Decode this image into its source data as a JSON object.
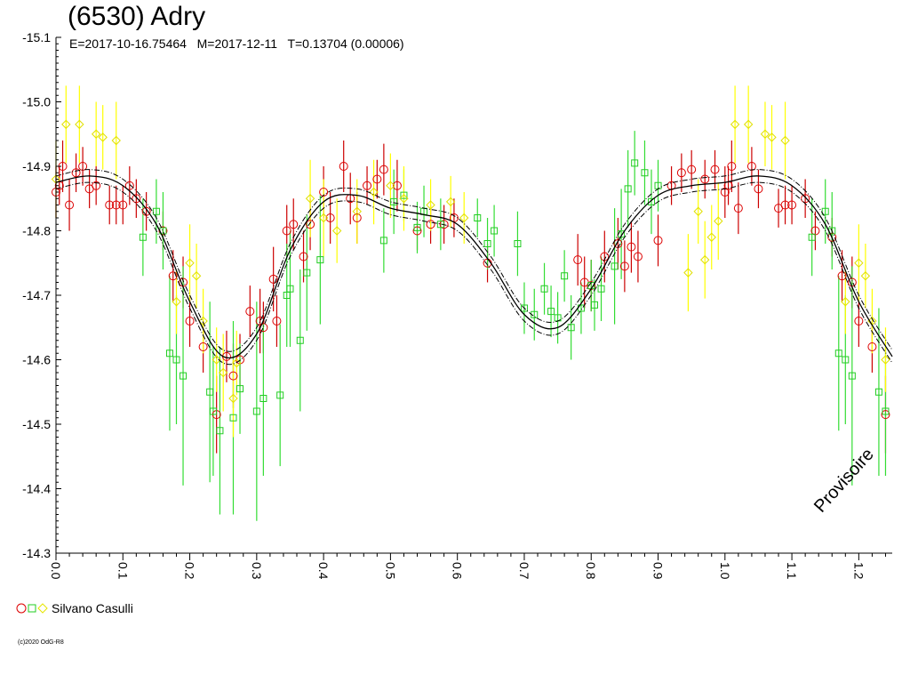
{
  "title": "(6530) Adry",
  "subtitle": "E=2017-10-16.75464   M=2017-12-11   T=0.13704 (0.00006)",
  "watermark": "Provisoire",
  "copyright": "(c)2020 OdG-R8",
  "legend": {
    "label": "Silvano Casulli",
    "colors": [
      "#dd0000",
      "#00c000",
      "#ffff00"
    ]
  },
  "colors": {
    "red": "#dd0000",
    "green": "#22cc22",
    "yellow": "#ffff00",
    "curve": "#000000"
  },
  "chart_data": {
    "type": "scatter",
    "title": "(6530) Adry",
    "xlim": [
      0,
      1.25
    ],
    "ylim": [
      -14.3,
      -15.1
    ],
    "y_inverted": true,
    "xticks": [
      "0.0",
      "0.1",
      "0.2",
      "0.3",
      "0.4",
      "0.5",
      "0.6",
      "0.7",
      "0.8",
      "0.9",
      "1.0",
      "1.1",
      "1.2"
    ],
    "yticks": [
      "-15.1",
      "-15.0",
      "-14.9",
      "-14.8",
      "-14.7",
      "-14.6",
      "-14.5",
      "-14.4",
      "-14.3"
    ],
    "grid": false,
    "legend_position": "bottom-left",
    "fit_curve": {
      "x": [
        0.0,
        0.05,
        0.1,
        0.15,
        0.2,
        0.25,
        0.3,
        0.35,
        0.4,
        0.45,
        0.5,
        0.55,
        0.6,
        0.65,
        0.7,
        0.75,
        0.8,
        0.85,
        0.9,
        0.95,
        1.0,
        1.05,
        1.1,
        1.15,
        1.2,
        1.25
      ],
      "y": [
        -14.875,
        -14.885,
        -14.87,
        -14.81,
        -14.69,
        -14.605,
        -14.64,
        -14.77,
        -14.845,
        -14.855,
        -14.835,
        -14.825,
        -14.81,
        -14.75,
        -14.67,
        -14.65,
        -14.71,
        -14.8,
        -14.855,
        -14.87,
        -14.875,
        -14.885,
        -14.87,
        -14.81,
        -14.69,
        -14.605
      ],
      "band": 0.01
    },
    "series": [
      {
        "marker": "circle",
        "color": "#dd0000",
        "points": [
          [
            0.0,
            -14.86,
            0.04
          ],
          [
            0.005,
            -14.87,
            0.03
          ],
          [
            0.01,
            -14.9,
            0.04
          ],
          [
            0.02,
            -14.84,
            0.04
          ],
          [
            0.03,
            -14.89,
            0.03
          ],
          [
            0.04,
            -14.9,
            0.03
          ],
          [
            0.05,
            -14.865,
            0.03
          ],
          [
            0.06,
            -14.87,
            0.03
          ],
          [
            0.08,
            -14.84,
            0.03
          ],
          [
            0.09,
            -14.84,
            0.03
          ],
          [
            0.1,
            -14.84,
            0.03
          ],
          [
            0.11,
            -14.87,
            0.03
          ],
          [
            0.12,
            -14.85,
            0.03
          ],
          [
            0.135,
            -14.83,
            0.03
          ],
          [
            0.16,
            -14.8,
            0.03
          ],
          [
            0.175,
            -14.73,
            0.04
          ],
          [
            0.19,
            -14.72,
            0.04
          ],
          [
            0.2,
            -14.66,
            0.04
          ],
          [
            0.22,
            -14.62,
            0.04
          ],
          [
            0.24,
            -14.515,
            0.06
          ],
          [
            0.255,
            -14.605,
            0.04
          ],
          [
            0.265,
            -14.575,
            0.05
          ],
          [
            0.275,
            -14.6,
            0.04
          ],
          [
            0.29,
            -14.675,
            0.04
          ],
          [
            0.305,
            -14.66,
            0.05
          ],
          [
            0.31,
            -14.65,
            0.04
          ],
          [
            0.325,
            -14.725,
            0.05
          ],
          [
            0.33,
            -14.66,
            0.04
          ],
          [
            0.345,
            -14.8,
            0.04
          ],
          [
            0.355,
            -14.81,
            0.04
          ],
          [
            0.37,
            -14.76,
            0.04
          ],
          [
            0.38,
            -14.81,
            0.04
          ],
          [
            0.4,
            -14.86,
            0.04
          ],
          [
            0.41,
            -14.82,
            0.04
          ],
          [
            0.43,
            -14.9,
            0.04
          ],
          [
            0.44,
            -14.85,
            0.04
          ],
          [
            0.45,
            -14.82,
            0.04
          ],
          [
            0.465,
            -14.87,
            0.03
          ],
          [
            0.48,
            -14.88,
            0.03
          ],
          [
            0.49,
            -14.895,
            0.04
          ],
          [
            0.51,
            -14.87,
            0.04
          ],
          [
            0.54,
            -14.8,
            0.03
          ],
          [
            0.56,
            -14.81,
            0.03
          ],
          [
            0.58,
            -14.81,
            0.03
          ],
          [
            0.595,
            -14.82,
            0.03
          ],
          [
            0.645,
            -14.75,
            0.03
          ],
          [
            0.78,
            -14.755,
            0.04
          ],
          [
            0.79,
            -14.72,
            0.04
          ],
          [
            0.8,
            -14.715,
            0.04
          ],
          [
            0.82,
            -14.76,
            0.04
          ],
          [
            0.84,
            -14.78,
            0.04
          ],
          [
            0.85,
            -14.745,
            0.04
          ],
          [
            0.86,
            -14.775,
            0.04
          ],
          [
            0.87,
            -14.76,
            0.04
          ],
          [
            0.9,
            -14.785,
            0.04
          ],
          [
            0.92,
            -14.87,
            0.03
          ],
          [
            0.935,
            -14.89,
            0.03
          ],
          [
            0.95,
            -14.895,
            0.03
          ],
          [
            0.97,
            -14.88,
            0.03
          ],
          [
            0.985,
            -14.895,
            0.03
          ],
          [
            1.0,
            -14.86,
            0.04
          ],
          [
            1.005,
            -14.87,
            0.03
          ],
          [
            1.01,
            -14.9,
            0.04
          ],
          [
            1.02,
            -14.835,
            0.04
          ],
          [
            1.04,
            -14.9,
            0.03
          ],
          [
            1.05,
            -14.865,
            0.03
          ],
          [
            1.08,
            -14.835,
            0.03
          ],
          [
            1.09,
            -14.84,
            0.03
          ],
          [
            1.1,
            -14.84,
            0.03
          ],
          [
            1.12,
            -14.85,
            0.03
          ],
          [
            1.135,
            -14.8,
            0.03
          ],
          [
            1.16,
            -14.79,
            0.03
          ],
          [
            1.175,
            -14.73,
            0.04
          ],
          [
            1.19,
            -14.72,
            0.04
          ],
          [
            1.2,
            -14.66,
            0.04
          ],
          [
            1.22,
            -14.62,
            0.04
          ],
          [
            1.24,
            -14.515,
            0.06
          ]
        ]
      },
      {
        "marker": "square",
        "color": "#22cc22",
        "points": [
          [
            0.13,
            -14.79,
            0.06
          ],
          [
            0.15,
            -14.83,
            0.05
          ],
          [
            0.16,
            -14.8,
            0.06
          ],
          [
            0.17,
            -14.61,
            0.12
          ],
          [
            0.18,
            -14.6,
            0.1
          ],
          [
            0.19,
            -14.575,
            0.17
          ],
          [
            0.23,
            -14.55,
            0.14
          ],
          [
            0.235,
            -14.52,
            0.1
          ],
          [
            0.245,
            -14.49,
            0.13
          ],
          [
            0.265,
            -14.51,
            0.15
          ],
          [
            0.275,
            -14.555,
            0.07
          ],
          [
            0.3,
            -14.52,
            0.17
          ],
          [
            0.31,
            -14.54,
            0.12
          ],
          [
            0.335,
            -14.545,
            0.11
          ],
          [
            0.345,
            -14.7,
            0.08
          ],
          [
            0.35,
            -14.71,
            0.09
          ],
          [
            0.365,
            -14.63,
            0.11
          ],
          [
            0.375,
            -14.735,
            0.09
          ],
          [
            0.395,
            -14.755,
            0.1
          ],
          [
            0.49,
            -14.785,
            0.05
          ],
          [
            0.505,
            -14.845,
            0.05
          ],
          [
            0.52,
            -14.855,
            0.04
          ],
          [
            0.54,
            -14.805,
            0.04
          ],
          [
            0.55,
            -14.83,
            0.04
          ],
          [
            0.575,
            -14.81,
            0.04
          ],
          [
            0.63,
            -14.82,
            0.03
          ],
          [
            0.645,
            -14.78,
            0.04
          ],
          [
            0.655,
            -14.8,
            0.04
          ],
          [
            0.69,
            -14.78,
            0.05
          ],
          [
            0.7,
            -14.68,
            0.04
          ],
          [
            0.715,
            -14.67,
            0.04
          ],
          [
            0.73,
            -14.71,
            0.04
          ],
          [
            0.74,
            -14.675,
            0.04
          ],
          [
            0.75,
            -14.665,
            0.04
          ],
          [
            0.76,
            -14.73,
            0.04
          ],
          [
            0.77,
            -14.65,
            0.05
          ],
          [
            0.785,
            -14.68,
            0.04
          ],
          [
            0.8,
            -14.715,
            0.04
          ],
          [
            0.805,
            -14.685,
            0.04
          ],
          [
            0.815,
            -14.71,
            0.05
          ],
          [
            0.835,
            -14.745,
            0.09
          ],
          [
            0.845,
            -14.795,
            0.07
          ],
          [
            0.855,
            -14.865,
            0.06
          ],
          [
            0.865,
            -14.905,
            0.05
          ],
          [
            0.88,
            -14.89,
            0.05
          ],
          [
            0.89,
            -14.845,
            0.05
          ],
          [
            0.9,
            -14.87,
            0.04
          ],
          [
            1.13,
            -14.79,
            0.06
          ],
          [
            1.15,
            -14.83,
            0.05
          ],
          [
            1.16,
            -14.8,
            0.06
          ],
          [
            1.17,
            -14.61,
            0.12
          ],
          [
            1.18,
            -14.6,
            0.1
          ],
          [
            1.19,
            -14.575,
            0.17
          ],
          [
            1.23,
            -14.55,
            0.13
          ],
          [
            1.24,
            -14.52,
            0.1
          ]
        ]
      },
      {
        "marker": "diamond",
        "color": "#ffff00",
        "points": [
          [
            0.0,
            -14.88,
            0.06
          ],
          [
            0.015,
            -14.965,
            0.06
          ],
          [
            0.035,
            -14.965,
            0.06
          ],
          [
            0.06,
            -14.95,
            0.05
          ],
          [
            0.07,
            -14.945,
            0.05
          ],
          [
            0.09,
            -14.94,
            0.06
          ],
          [
            0.18,
            -14.69,
            0.05
          ],
          [
            0.2,
            -14.75,
            0.06
          ],
          [
            0.21,
            -14.73,
            0.05
          ],
          [
            0.22,
            -14.66,
            0.05
          ],
          [
            0.24,
            -14.6,
            0.05
          ],
          [
            0.25,
            -14.58,
            0.06
          ],
          [
            0.265,
            -14.54,
            0.06
          ],
          [
            0.27,
            -14.595,
            0.05
          ],
          [
            0.38,
            -14.85,
            0.06
          ],
          [
            0.4,
            -14.82,
            0.06
          ],
          [
            0.42,
            -14.8,
            0.05
          ],
          [
            0.45,
            -14.83,
            0.05
          ],
          [
            0.475,
            -14.86,
            0.05
          ],
          [
            0.5,
            -14.87,
            0.05
          ],
          [
            0.52,
            -14.85,
            0.05
          ],
          [
            0.56,
            -14.84,
            0.04
          ],
          [
            0.59,
            -14.845,
            0.04
          ],
          [
            0.61,
            -14.82,
            0.04
          ],
          [
            0.945,
            -14.735,
            0.06
          ],
          [
            0.96,
            -14.83,
            0.05
          ],
          [
            0.97,
            -14.755,
            0.06
          ],
          [
            0.98,
            -14.79,
            0.05
          ],
          [
            0.99,
            -14.815,
            0.06
          ],
          [
            1.015,
            -14.965,
            0.06
          ],
          [
            1.035,
            -14.965,
            0.06
          ],
          [
            1.06,
            -14.95,
            0.05
          ],
          [
            1.07,
            -14.945,
            0.05
          ],
          [
            1.09,
            -14.94,
            0.06
          ],
          [
            1.18,
            -14.69,
            0.05
          ],
          [
            1.2,
            -14.75,
            0.06
          ],
          [
            1.21,
            -14.73,
            0.05
          ],
          [
            1.22,
            -14.66,
            0.05
          ],
          [
            1.24,
            -14.6,
            0.05
          ]
        ]
      }
    ]
  }
}
